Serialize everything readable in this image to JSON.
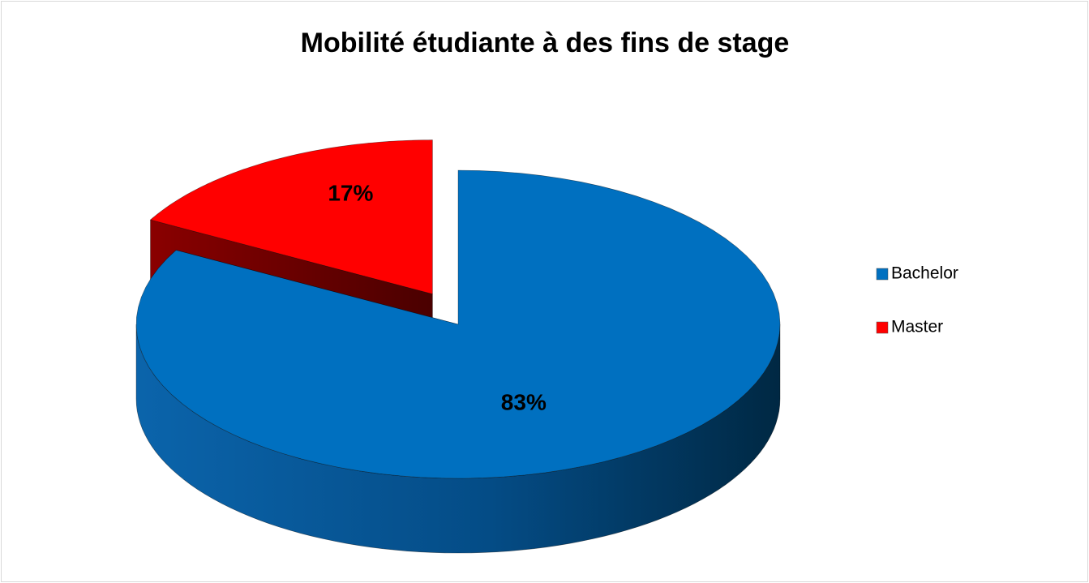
{
  "chart_data": {
    "type": "pie3d",
    "title": "Mobilité étudiante à des fins de stage",
    "categories": [
      "Bachelor",
      "Master"
    ],
    "values": [
      83,
      17
    ],
    "value_labels": [
      "83%",
      "17%"
    ],
    "colors": [
      "#0070c0",
      "#ff0000"
    ],
    "legend": "right"
  }
}
